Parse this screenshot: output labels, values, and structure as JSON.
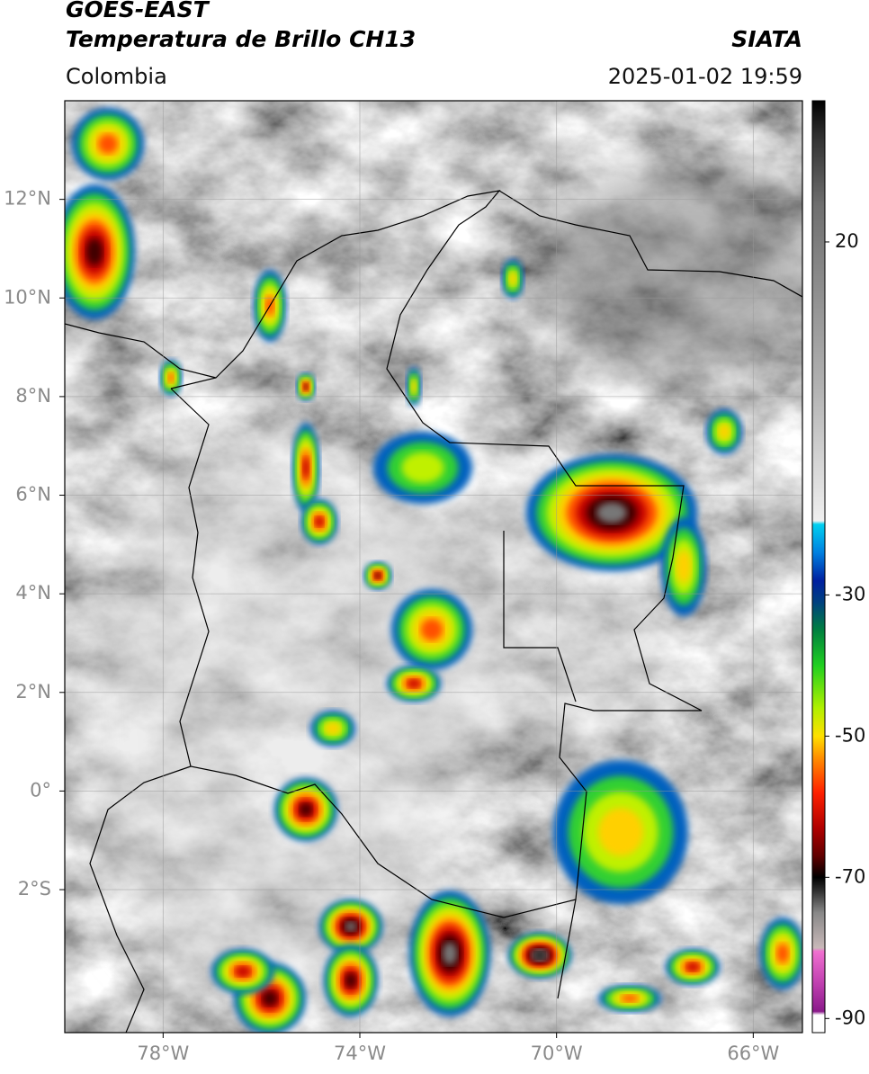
{
  "header": {
    "title": "GOES-EAST",
    "subtitle": "Temperatura de Brillo CH13",
    "source": "SIATA",
    "region": "Colombia",
    "datetime": "2025-01-02 19:59"
  },
  "map": {
    "lonlim": [
      -80,
      -65
    ],
    "latlim": [
      -4.9,
      14
    ],
    "grid": true,
    "lon_ticks": [
      {
        "value": -78,
        "label": "78°W"
      },
      {
        "value": -74,
        "label": "74°W"
      },
      {
        "value": -70,
        "label": "70°W"
      },
      {
        "value": -66,
        "label": "66°W"
      }
    ],
    "lat_ticks": [
      {
        "value": 12,
        "label": "12°N"
      },
      {
        "value": 10,
        "label": "10°N"
      },
      {
        "value": 8,
        "label": "8°N"
      },
      {
        "value": 6,
        "label": "6°N"
      },
      {
        "value": 4,
        "label": "4°N"
      },
      {
        "value": 2,
        "label": "2°N"
      },
      {
        "value": 0,
        "label": "0°"
      },
      {
        "value": -2,
        "label": "2°S"
      }
    ]
  },
  "colorbar": {
    "range": [
      -92,
      40
    ],
    "ticks": [
      20,
      -30,
      -50,
      -70,
      -90
    ],
    "colormap": [
      {
        "value": -92,
        "color": "#ffffff"
      },
      {
        "value": -89.5,
        "color": "#ffffff"
      },
      {
        "value": -89,
        "color": "#8a1a8a"
      },
      {
        "value": -85,
        "color": "#c040b0"
      },
      {
        "value": -80.5,
        "color": "#f070d0"
      },
      {
        "value": -80,
        "color": "#c8b8b8"
      },
      {
        "value": -75,
        "color": "#888888"
      },
      {
        "value": -72,
        "color": "#333333"
      },
      {
        "value": -70,
        "color": "#000000"
      },
      {
        "value": -67,
        "color": "#600000"
      },
      {
        "value": -63,
        "color": "#b00000"
      },
      {
        "value": -58,
        "color": "#ff2000"
      },
      {
        "value": -53,
        "color": "#ff9000"
      },
      {
        "value": -50,
        "color": "#ffe000"
      },
      {
        "value": -46,
        "color": "#b0f000"
      },
      {
        "value": -40,
        "color": "#20d020"
      },
      {
        "value": -35,
        "color": "#008040"
      },
      {
        "value": -31,
        "color": "#004080"
      },
      {
        "value": -28,
        "color": "#0020a0"
      },
      {
        "value": -24,
        "color": "#0080e0"
      },
      {
        "value": -20,
        "color": "#00d0f0"
      },
      {
        "value": -19.5,
        "color": "#f0f0f0"
      },
      {
        "value": 0,
        "color": "#b0b0b0"
      },
      {
        "value": 25,
        "color": "#707070"
      },
      {
        "value": 35,
        "color": "#303030"
      },
      {
        "value": 40,
        "color": "#000000"
      }
    ]
  }
}
